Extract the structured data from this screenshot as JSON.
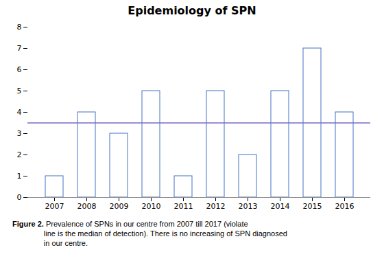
{
  "chart_data": {
    "type": "bar",
    "title": "Epidemiology of SPN",
    "categories": [
      "2007",
      "2008",
      "2009",
      "2010",
      "2011",
      "2012",
      "2013",
      "2014",
      "2015",
      "2016"
    ],
    "values": [
      1,
      4,
      3,
      5,
      1,
      5,
      2,
      5,
      7,
      4
    ],
    "color": "#4472C4",
    "median_line": {
      "y": 3.5,
      "color": "#7B68C8"
    },
    "ylim": [
      0,
      8
    ],
    "yticks": [
      0,
      1,
      2,
      3,
      4,
      5,
      6,
      7,
      8
    ],
    "grid": false,
    "caption_label": "Figure 2.",
    "caption": " Prevalence of SPNs in our centre from 2007 till 2017 (violate\nline is the median of detection). There is no increasing of SPN diagnosed\nin our centre."
  }
}
